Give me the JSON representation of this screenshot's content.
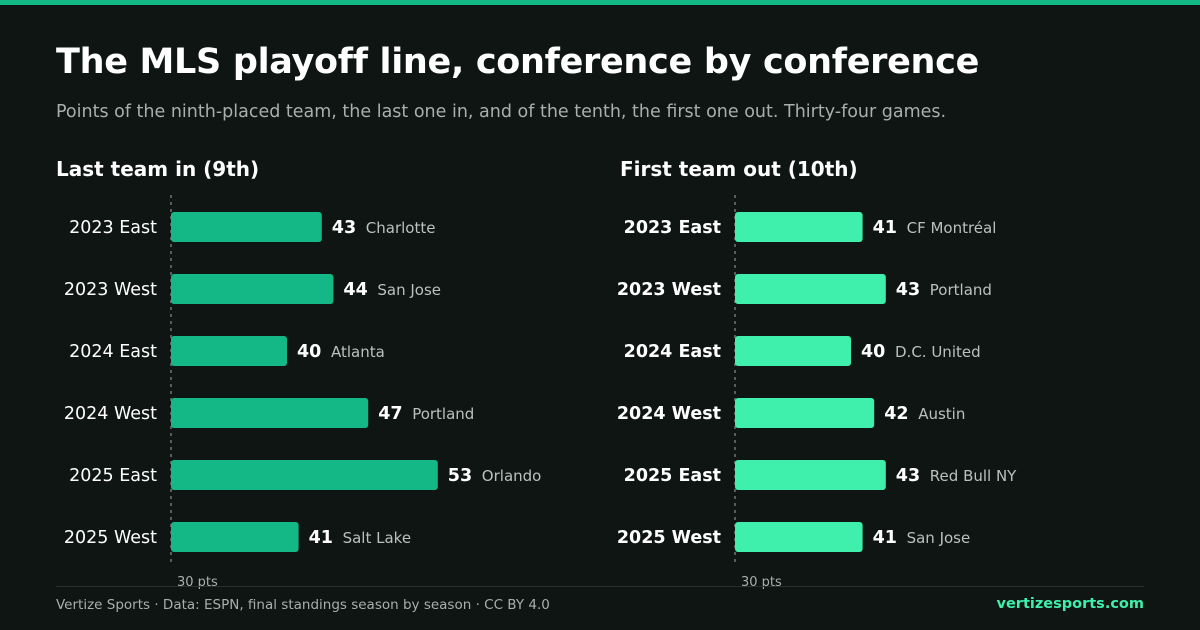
{
  "title": "The MLS playoff line, conference by conference",
  "subtitle": "Points of the ninth-placed team, the last one in, and of the tenth, the first one out. Thirty-four games.",
  "colors": {
    "accent": "#14b886",
    "last_in": "#14b886",
    "first_out": "#3ef0ac"
  },
  "chart_data": [
    {
      "type": "bar",
      "orientation": "horizontal",
      "title": "Last team in (9th)",
      "baseline": 30,
      "baseline_label": "30 pts",
      "categories": [
        "2023 East",
        "2023 West",
        "2024 East",
        "2024 West",
        "2025 East",
        "2025 West"
      ],
      "values": [
        43,
        44,
        40,
        47,
        53,
        41
      ],
      "value_labels": [
        "43",
        "44",
        "40",
        "47",
        "53",
        "41"
      ],
      "teams": [
        "Charlotte",
        "San Jose",
        "Atlanta",
        "Portland",
        "Orlando",
        "Salt Lake"
      ]
    },
    {
      "type": "bar",
      "orientation": "horizontal",
      "title": "First team out (10th)",
      "baseline": 30,
      "baseline_label": "30 pts",
      "categories": [
        "2023 East",
        "2023 West",
        "2024 East",
        "2024 West",
        "2025 East",
        "2025 West"
      ],
      "values": [
        41,
        43,
        40,
        42,
        43,
        41
      ],
      "value_labels": [
        "41",
        "43",
        "40",
        "42",
        "43",
        "41"
      ],
      "teams": [
        "CF Montréal",
        "Portland",
        "D.C. United",
        "Austin",
        "Red Bull NY",
        "San Jose"
      ]
    }
  ],
  "footer": {
    "source": "Vertize Sports · Data: ESPN, final standings season by season · CC BY 4.0",
    "site": "vertizesports.com"
  }
}
